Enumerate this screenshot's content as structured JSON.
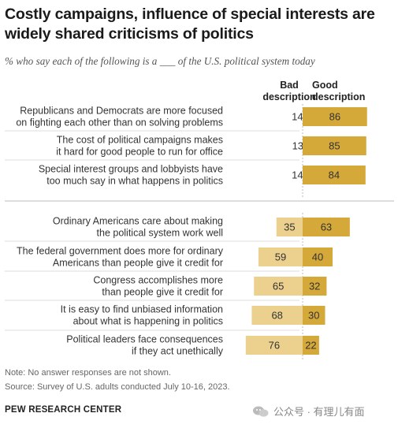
{
  "title": "Costly campaigns, influence of special interests are widely shared criticisms of politics",
  "subtitle": "% who say each of the following is a ___ of the U.S. political system today",
  "columns": {
    "bad": "Bad description",
    "good": "Good description"
  },
  "colors": {
    "bad": "#ecd08e",
    "good": "#d4a93a",
    "axis": "#bbbbbb",
    "divider": "#dddddd"
  },
  "chart_data": {
    "type": "bar",
    "orientation": "horizontal-diverging",
    "categories": [
      "Republicans and Democrats are more focused on fighting each other than on solving problems",
      "The cost of political campaigns makes it hard for good people to run for office",
      "Special interest groups and lobbyists have too much say in what happens in politics",
      "Ordinary Americans care about making the political system work well",
      "The federal government does more for ordinary Americans than people give it credit for",
      "Congress accomplishes more than people give it credit for",
      "It is easy to find unbiased information about what is happening in politics",
      "Political leaders face consequences if they act unethically"
    ],
    "category_lines": [
      [
        "Republicans and Democrats are more focused",
        "on fighting each other than on solving problems"
      ],
      [
        "The cost of political campaigns makes",
        "it hard for good people to run for office"
      ],
      [
        "Special interest groups and lobbyists have",
        "too much say in what happens in politics"
      ],
      [
        "Ordinary Americans care about making",
        "the political system work well"
      ],
      [
        "The federal government does more for ordinary",
        "Americans than people give it credit for"
      ],
      [
        "Congress accomplishes more",
        "than people give it credit for"
      ],
      [
        "It is easy to find unbiased information",
        "about what is happening in politics"
      ],
      [
        "Political leaders face consequences",
        "if they act unethically"
      ]
    ],
    "series": [
      {
        "name": "Bad description",
        "values": [
          14,
          13,
          14,
          35,
          59,
          65,
          68,
          76
        ]
      },
      {
        "name": "Good description",
        "values": [
          86,
          85,
          84,
          63,
          40,
          32,
          30,
          22
        ]
      }
    ],
    "bar_labels_shown_on_bars_only_for_highlighted": {
      "bad_highlighted": [
        3,
        4,
        5,
        6,
        7
      ],
      "good_highlighted": [
        0,
        1,
        2,
        3,
        4,
        5,
        6,
        7
      ]
    },
    "groups": [
      [
        0,
        1,
        2
      ],
      [
        3,
        4,
        5,
        6,
        7
      ]
    ]
  },
  "notes": {
    "note": "Note: No answer responses are not shown.",
    "source": "Source: Survey of U.S. adults conducted July 10-16, 2023."
  },
  "brand": "PEW RESEARCH CENTER",
  "watermark": "公众号 · 有理儿有面"
}
